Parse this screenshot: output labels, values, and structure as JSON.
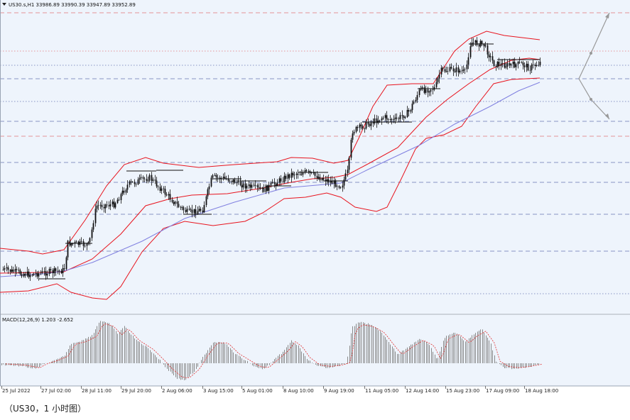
{
  "chart_data": {
    "type": "candlestick",
    "symbol_header": "US30.s,H1  33986.89 33990.39 33947.89 33952.89",
    "indicator_label": "MACD(12,26,9) 1.203 -2.652",
    "x_ticks": [
      "25 Jul 2022",
      "27 Jul 02:00",
      "28 Jul 11:00",
      "29 Jul 20:00",
      "2 Aug 06:00",
      "3 Aug 15:00",
      "5 Aug 01:00",
      "8 Aug 10:00",
      "9 Aug 19:00",
      "11 Aug 05:00",
      "12 Aug 14:00",
      "15 Aug 23:00",
      "17 Aug 09:00",
      "18 Aug 18:00"
    ],
    "last_close": 33952.89,
    "overlays": [
      "Bollinger Bands",
      "Moving Average"
    ],
    "grid": true
  },
  "colors": {
    "plot_bg": "#eef4fc",
    "candle": "#111111",
    "bollinger": "#e8141e",
    "moving_average": "#8080e0",
    "macd_hist": "#8a8a8a",
    "macd_signal": "#e03030",
    "level_dashed_blue": "#5060a8",
    "level_dashed_red": "#e06060",
    "projection_arrow": "#999999"
  },
  "caption": "（US30，1 小时图）"
}
